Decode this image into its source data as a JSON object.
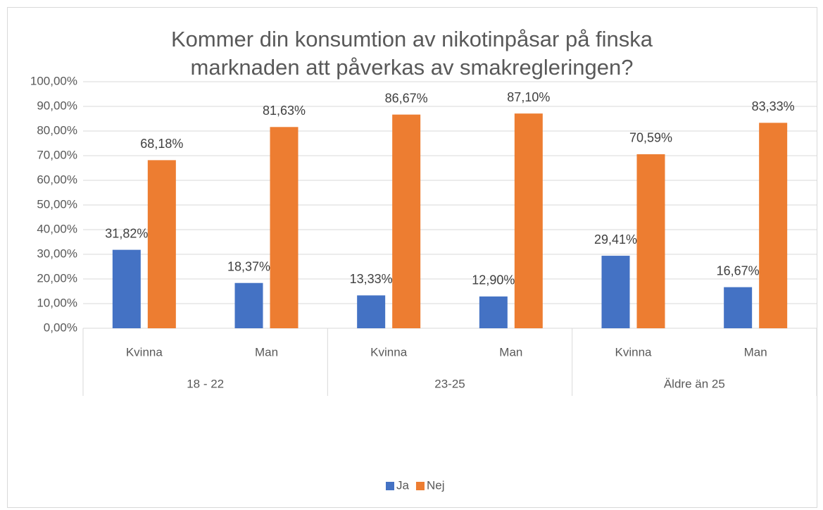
{
  "chart_data": {
    "type": "bar",
    "title": "Kommer din konsumtion av nikotinpåsar på finska marknaden att påverkas av smakregleringen?",
    "categories": [
      "Kvinna",
      "Man",
      "Kvinna",
      "Man",
      "Kvinna",
      "Man"
    ],
    "groups": [
      "18 - 22",
      "23-25",
      "Äldre än 25"
    ],
    "series": [
      {
        "name": "Ja",
        "color": "#4472c4",
        "values": [
          31.82,
          18.37,
          13.33,
          12.9,
          29.41,
          16.67
        ],
        "value_labels": [
          "31,82%",
          "18,37%",
          "13,33%",
          "12,90%",
          "29,41%",
          "16,67%"
        ]
      },
      {
        "name": "Nej",
        "color": "#ed7d31",
        "values": [
          68.18,
          81.63,
          86.67,
          87.1,
          70.59,
          83.33
        ],
        "value_labels": [
          "68,18%",
          "81,63%",
          "86,67%",
          "87,10%",
          "70,59%",
          "83,33%"
        ]
      }
    ],
    "ylim": [
      0,
      100
    ],
    "yticks": [
      {
        "value": 0,
        "label": "0,00%"
      },
      {
        "value": 10,
        "label": "10,00%"
      },
      {
        "value": 20,
        "label": "20,00%"
      },
      {
        "value": 30,
        "label": "30,00%"
      },
      {
        "value": 40,
        "label": "40,00%"
      },
      {
        "value": 50,
        "label": "50,00%"
      },
      {
        "value": 60,
        "label": "60,00%"
      },
      {
        "value": 70,
        "label": "70,00%"
      },
      {
        "value": 80,
        "label": "80,00%"
      },
      {
        "value": 90,
        "label": "90,00%"
      },
      {
        "value": 100,
        "label": "100,00%"
      }
    ],
    "grid": true,
    "legend": "bottom"
  }
}
